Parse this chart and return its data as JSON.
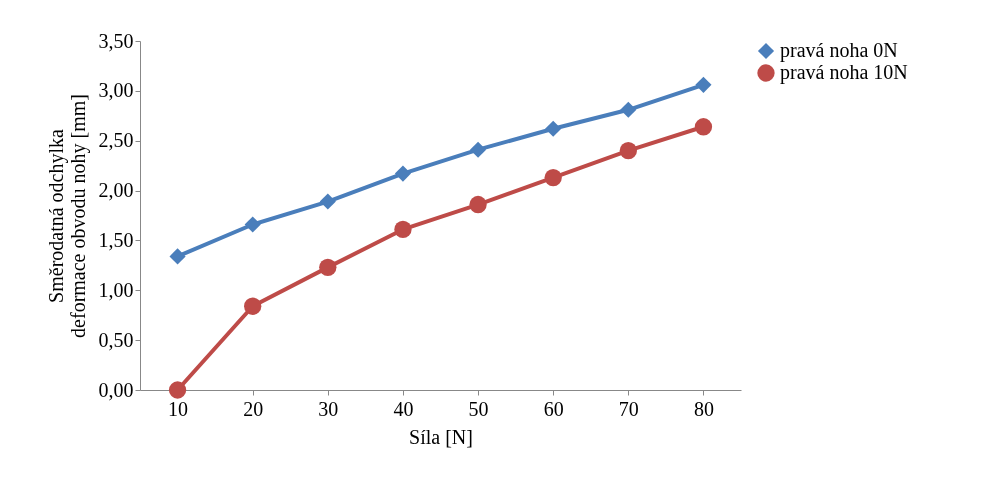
{
  "chart_data": {
    "type": "line",
    "xlabel": "Síla  [N]",
    "ylabel": "Směrodatná odchylka deformace obvodu nohy [mm]",
    "categories": [
      "10",
      "20",
      "30",
      "40",
      "50",
      "60",
      "70",
      "80"
    ],
    "series": [
      {
        "name": "pravá noha 0N",
        "color": "#4a7ebb",
        "marker": "diamond",
        "values": [
          1.34,
          1.66,
          1.89,
          2.17,
          2.41,
          2.62,
          2.81,
          3.06
        ]
      },
      {
        "name": "pravá noha 10N",
        "color": "#be4b48",
        "marker": "circle",
        "values": [
          0,
          0.84,
          1.23,
          1.61,
          1.86,
          2.13,
          2.4,
          2.64
        ]
      }
    ],
    "ylim": [
      0,
      3.5
    ],
    "yticks": [
      {
        "value": 0,
        "label": "0,00"
      },
      {
        "value": 0.5,
        "label": "0,50"
      },
      {
        "value": 1,
        "label": "1,00"
      },
      {
        "value": 1.5,
        "label": "1,50"
      },
      {
        "value": 2,
        "label": "2,00"
      },
      {
        "value": 2.5,
        "label": "2,50"
      },
      {
        "value": 3,
        "label": "3,00"
      },
      {
        "value": 3.5,
        "label": "3,50"
      }
    ],
    "grid": false,
    "legend": "right",
    "line_style": "solid"
  }
}
